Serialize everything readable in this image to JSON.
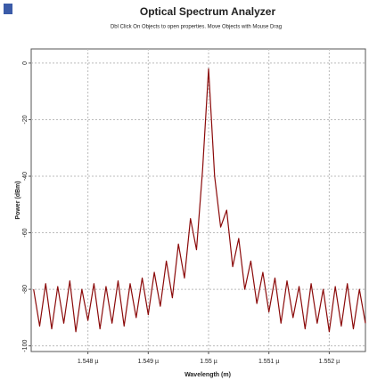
{
  "chart_data": {
    "type": "line",
    "title": "Optical Spectrum Analyzer",
    "subtitle": "Dbl Click On Objects to open properties.  Move Objects with Mouse Drag",
    "x_label": "Wavelength (m)",
    "y_label": "Power (dBm)",
    "x": [
      1.5471,
      1.5472,
      1.5473,
      1.5474,
      1.5475,
      1.5476,
      1.5477,
      1.5478,
      1.5479,
      1.548,
      1.5481,
      1.5482,
      1.5483,
      1.5484,
      1.5485,
      1.5486,
      1.5487,
      1.5488,
      1.5489,
      1.549,
      1.5491,
      1.5492,
      1.5493,
      1.5494,
      1.5495,
      1.5496,
      1.5497,
      1.5498,
      1.5499,
      1.55,
      1.5501,
      1.5502,
      1.5503,
      1.5504,
      1.5505,
      1.5506,
      1.5507,
      1.5508,
      1.5509,
      1.551,
      1.5511,
      1.5512,
      1.5513,
      1.5514,
      1.5515,
      1.5516,
      1.5517,
      1.5518,
      1.5519,
      1.552,
      1.5521,
      1.5522,
      1.5523,
      1.5524,
      1.5525,
      1.5526
    ],
    "series": [
      {
        "color": "#8b0a0a",
        "values": [
          -80,
          -93,
          -78,
          -94,
          -79,
          -92,
          -77,
          -95,
          -80,
          -91,
          -78,
          -94,
          -79,
          -92,
          -77,
          -93,
          -78,
          -90,
          -76,
          -89,
          -74,
          -86,
          -70,
          -83,
          -64,
          -76,
          -55,
          -66,
          -38,
          -2,
          -40,
          -58,
          -52,
          -72,
          -62,
          -80,
          -70,
          -85,
          -74,
          -88,
          -76,
          -92,
          -77,
          -90,
          -79,
          -94,
          -78,
          -92,
          -80,
          -95,
          -79,
          -93,
          -78,
          -94,
          -80,
          -92
        ]
      }
    ],
    "xlim": [
      1.54706,
      1.5526
    ],
    "ylim": [
      -102,
      5
    ],
    "xticks": [
      {
        "value": 1.548,
        "label": "1.548 µ"
      },
      {
        "value": 1.549,
        "label": "1.549 µ"
      },
      {
        "value": 1.55,
        "label": "1.55 µ"
      },
      {
        "value": 1.551,
        "label": "1.551 µ"
      },
      {
        "value": 1.552,
        "label": "1.552 µ"
      }
    ],
    "yticks": [
      0,
      -20,
      -40,
      -60,
      -80,
      -100
    ],
    "grid": true
  }
}
